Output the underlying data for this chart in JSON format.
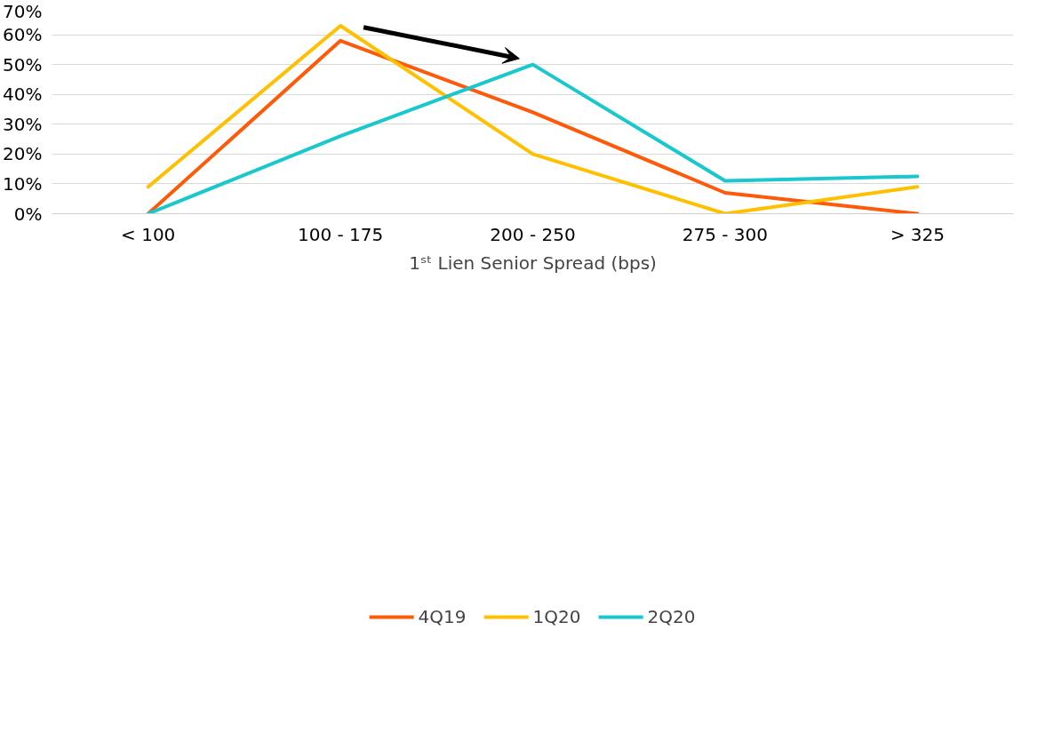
{
  "chart_data": {
    "type": "line",
    "xlabel": "1ˢᵗ Lien Senior Spread (bps)",
    "categories": [
      "< 100",
      "100 - 175",
      "200 - 250",
      "275 - 300",
      "> 325"
    ],
    "series": [
      {
        "name": "4Q19",
        "color": "#ff5a0a",
        "values": [
          0,
          58,
          34,
          7,
          0
        ]
      },
      {
        "name": "1Q20",
        "color": "#ffc000",
        "values": [
          9,
          63,
          20,
          0,
          9
        ]
      },
      {
        "name": "2Q20",
        "color": "#18c8cc",
        "values": [
          0,
          26,
          50,
          11,
          12.5
        ]
      }
    ],
    "ylim": [
      0,
      70
    ],
    "yticks": [
      {
        "value": 0,
        "label": "0%"
      },
      {
        "value": 10,
        "label": "10%"
      },
      {
        "value": 20,
        "label": "20%"
      },
      {
        "value": 30,
        "label": "30%"
      },
      {
        "value": 40,
        "label": "40%"
      },
      {
        "value": 50,
        "label": "50%"
      },
      {
        "value": 60,
        "label": "60%"
      },
      {
        "value": 70,
        "label": "70%"
      }
    ],
    "grid": "y",
    "legend": "bottom",
    "marker": "none",
    "line_style": "solid"
  }
}
